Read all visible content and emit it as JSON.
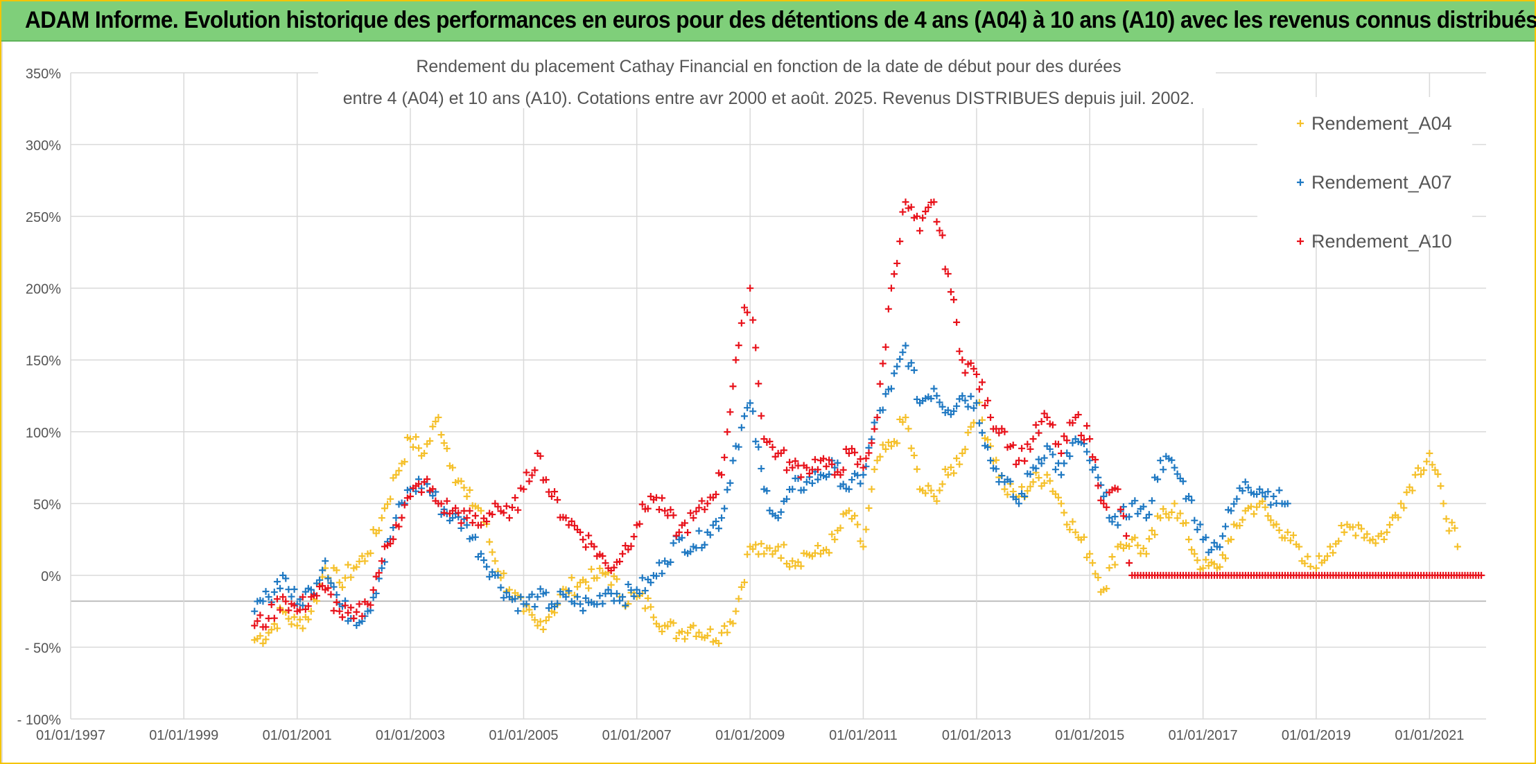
{
  "header": {
    "banner": "ADAM Informe. Evolution historique des performances en euros pour des détentions de 4 ans (A04) à 10 ans (A10) avec les revenus connus distribués"
  },
  "colors": {
    "banner_bg": "#7fcf7a",
    "frame": "#f5c400",
    "A04": "#f5c02a",
    "A07": "#1e78c2",
    "A10": "#e8121b",
    "grid": "#d9d9d9"
  },
  "chart_data": {
    "type": "scatter",
    "marker": "plus",
    "title_line1": "Rendement du placement Cathay Financial  en fonction de la date de début pour des durées",
    "title_line2": "entre 4 (A04) et 10 ans (A10). Cotations entre avr 2000 et août. 2025. Revenus DISTRIBUES depuis juil. 2002.",
    "xlabel": "",
    "ylabel": "",
    "xlim": [
      "1997-01-01",
      "2022-01-01"
    ],
    "ylim": [
      -100,
      350
    ],
    "y_ticks": [
      "350%",
      "300%",
      "250%",
      "200%",
      "150%",
      "100%",
      "50%",
      "0%",
      "- 50%",
      "- 100%"
    ],
    "x_ticks": [
      "01/01/1997",
      "01/01/1999",
      "01/01/2001",
      "01/01/2003",
      "01/01/2005",
      "01/01/2007",
      "01/01/2009",
      "01/01/2011",
      "01/01/2013",
      "01/01/2015",
      "01/01/2017",
      "01/01/2019",
      "01/01/2021"
    ],
    "grid": true,
    "legend_position": "top-right",
    "series": [
      {
        "name": "Rendement_A04",
        "color": "#f5c02a",
        "points": [
          [
            "2000-04-01",
            -45
          ],
          [
            "2000-07-01",
            -40
          ],
          [
            "2000-10-01",
            -25
          ],
          [
            "2001-01-01",
            -35
          ],
          [
            "2001-04-01",
            -25
          ],
          [
            "2001-07-01",
            5
          ],
          [
            "2001-10-01",
            -5
          ],
          [
            "2002-01-01",
            5
          ],
          [
            "2002-04-01",
            15
          ],
          [
            "2002-07-01",
            40
          ],
          [
            "2002-10-01",
            70
          ],
          [
            "2003-01-01",
            95
          ],
          [
            "2003-04-01",
            85
          ],
          [
            "2003-07-01",
            110
          ],
          [
            "2003-10-01",
            75
          ],
          [
            "2004-01-01",
            55
          ],
          [
            "2004-04-01",
            45
          ],
          [
            "2004-07-01",
            10
          ],
          [
            "2004-10-01",
            -10
          ],
          [
            "2005-01-01",
            -25
          ],
          [
            "2005-04-01",
            -35
          ],
          [
            "2005-07-01",
            -25
          ],
          [
            "2005-10-01",
            -10
          ],
          [
            "2006-01-01",
            -5
          ],
          [
            "2006-04-01",
            -2
          ],
          [
            "2006-07-01",
            2
          ],
          [
            "2006-10-01",
            -15
          ],
          [
            "2007-01-01",
            -15
          ],
          [
            "2007-04-01",
            -22
          ],
          [
            "2007-07-01",
            -35
          ],
          [
            "2007-10-01",
            -40
          ],
          [
            "2008-01-01",
            -35
          ],
          [
            "2008-04-01",
            -42
          ],
          [
            "2008-07-01",
            -40
          ],
          [
            "2008-10-01",
            -25
          ],
          [
            "2009-01-01",
            20
          ],
          [
            "2009-04-01",
            15
          ],
          [
            "2009-07-01",
            20
          ],
          [
            "2009-10-01",
            10
          ],
          [
            "2010-01-01",
            15
          ],
          [
            "2010-04-01",
            15
          ],
          [
            "2010-07-01",
            25
          ],
          [
            "2010-10-01",
            45
          ],
          [
            "2011-01-01",
            20
          ],
          [
            "2011-04-01",
            80
          ],
          [
            "2011-07-01",
            90
          ],
          [
            "2011-10-01",
            110
          ],
          [
            "2012-01-01",
            60
          ],
          [
            "2012-04-01",
            55
          ],
          [
            "2012-07-01",
            70
          ],
          [
            "2012-10-01",
            85
          ],
          [
            "2013-01-01",
            120
          ],
          [
            "2013-04-01",
            90
          ],
          [
            "2013-07-01",
            60
          ],
          [
            "2013-10-01",
            55
          ],
          [
            "2014-01-01",
            65
          ],
          [
            "2014-04-01",
            70
          ],
          [
            "2014-07-01",
            50
          ],
          [
            "2014-10-01",
            30
          ],
          [
            "2015-01-01",
            15
          ],
          [
            "2015-04-01",
            -10
          ],
          [
            "2015-07-01",
            20
          ],
          [
            "2015-10-01",
            25
          ],
          [
            "2016-01-01",
            15
          ],
          [
            "2016-04-01",
            40
          ],
          [
            "2016-07-01",
            50
          ],
          [
            "2016-10-01",
            25
          ],
          [
            "2017-01-01",
            5
          ],
          [
            "2017-04-01",
            5
          ],
          [
            "2017-07-01",
            25
          ],
          [
            "2017-10-01",
            45
          ],
          [
            "2018-01-01",
            50
          ],
          [
            "2018-04-01",
            35
          ],
          [
            "2018-07-01",
            30
          ],
          [
            "2018-10-01",
            10
          ],
          [
            "2019-01-01",
            5
          ],
          [
            "2019-04-01",
            20
          ],
          [
            "2019-07-01",
            30
          ],
          [
            "2019-10-01",
            35
          ],
          [
            "2020-01-01",
            25
          ],
          [
            "2020-04-01",
            30
          ],
          [
            "2020-07-01",
            50
          ],
          [
            "2020-10-01",
            70
          ],
          [
            "2021-01-01",
            85
          ],
          [
            "2021-04-01",
            50
          ],
          [
            "2021-07-01",
            20
          ]
        ]
      },
      {
        "name": "Rendement_A07",
        "color": "#1e78c2",
        "points": [
          [
            "2000-04-01",
            -25
          ],
          [
            "2000-07-01",
            -15
          ],
          [
            "2000-10-01",
            0
          ],
          [
            "2001-01-01",
            -20
          ],
          [
            "2001-04-01",
            -10
          ],
          [
            "2001-07-01",
            10
          ],
          [
            "2001-10-01",
            -20
          ],
          [
            "2002-01-01",
            -30
          ],
          [
            "2002-04-01",
            -25
          ],
          [
            "2002-07-01",
            5
          ],
          [
            "2002-10-01",
            40
          ],
          [
            "2003-01-01",
            60
          ],
          [
            "2003-04-01",
            65
          ],
          [
            "2003-07-01",
            50
          ],
          [
            "2003-10-01",
            40
          ],
          [
            "2004-01-01",
            35
          ],
          [
            "2004-04-01",
            15
          ],
          [
            "2004-07-01",
            0
          ],
          [
            "2004-10-01",
            -15
          ],
          [
            "2005-01-01",
            -20
          ],
          [
            "2005-04-01",
            -15
          ],
          [
            "2005-07-01",
            -20
          ],
          [
            "2005-10-01",
            -15
          ],
          [
            "2006-01-01",
            -20
          ],
          [
            "2006-04-01",
            -20
          ],
          [
            "2006-07-01",
            -10
          ],
          [
            "2006-10-01",
            -15
          ],
          [
            "2007-01-01",
            -10
          ],
          [
            "2007-04-01",
            -5
          ],
          [
            "2007-07-01",
            10
          ],
          [
            "2007-10-01",
            25
          ],
          [
            "2008-01-01",
            20
          ],
          [
            "2008-04-01",
            30
          ],
          [
            "2008-07-01",
            40
          ],
          [
            "2008-10-01",
            90
          ],
          [
            "2009-01-01",
            120
          ],
          [
            "2009-04-01",
            60
          ],
          [
            "2009-07-01",
            40
          ],
          [
            "2009-10-01",
            60
          ],
          [
            "2010-01-01",
            65
          ],
          [
            "2010-04-01",
            70
          ],
          [
            "2010-07-01",
            75
          ],
          [
            "2010-10-01",
            60
          ],
          [
            "2011-01-01",
            70
          ],
          [
            "2011-04-01",
            110
          ],
          [
            "2011-07-01",
            130
          ],
          [
            "2011-10-01",
            160
          ],
          [
            "2012-01-01",
            120
          ],
          [
            "2012-04-01",
            130
          ],
          [
            "2012-07-01",
            115
          ],
          [
            "2012-10-01",
            125
          ],
          [
            "2013-01-01",
            120
          ],
          [
            "2013-04-01",
            80
          ],
          [
            "2013-07-01",
            65
          ],
          [
            "2013-10-01",
            50
          ],
          [
            "2014-01-01",
            75
          ],
          [
            "2014-04-01",
            90
          ],
          [
            "2014-07-01",
            70
          ],
          [
            "2014-10-01",
            95
          ],
          [
            "2015-01-01",
            80
          ],
          [
            "2015-04-01",
            55
          ],
          [
            "2015-07-01",
            35
          ],
          [
            "2015-10-01",
            50
          ],
          [
            "2016-01-01",
            40
          ],
          [
            "2016-04-01",
            80
          ],
          [
            "2016-07-01",
            75
          ],
          [
            "2016-10-01",
            55
          ],
          [
            "2017-01-01",
            25
          ],
          [
            "2017-04-01",
            20
          ],
          [
            "2017-07-01",
            45
          ],
          [
            "2017-10-01",
            65
          ],
          [
            "2018-01-01",
            60
          ],
          [
            "2018-04-01",
            55
          ],
          [
            "2018-07-01",
            50
          ]
        ]
      },
      {
        "name": "Rendement_A10",
        "color": "#e8121b",
        "points": [
          [
            "2000-04-01",
            -35
          ],
          [
            "2000-07-01",
            -30
          ],
          [
            "2000-10-01",
            -15
          ],
          [
            "2001-01-01",
            -25
          ],
          [
            "2001-04-01",
            -15
          ],
          [
            "2001-07-01",
            -10
          ],
          [
            "2001-10-01",
            -25
          ],
          [
            "2002-01-01",
            -30
          ],
          [
            "2002-04-01",
            -20
          ],
          [
            "2002-07-01",
            10
          ],
          [
            "2002-10-01",
            35
          ],
          [
            "2003-01-01",
            55
          ],
          [
            "2003-04-01",
            65
          ],
          [
            "2003-07-01",
            50
          ],
          [
            "2003-10-01",
            45
          ],
          [
            "2004-01-01",
            40
          ],
          [
            "2004-04-01",
            35
          ],
          [
            "2004-07-01",
            50
          ],
          [
            "2004-10-01",
            40
          ],
          [
            "2005-01-01",
            60
          ],
          [
            "2005-04-01",
            85
          ],
          [
            "2005-07-01",
            55
          ],
          [
            "2005-10-01",
            40
          ],
          [
            "2006-01-01",
            30
          ],
          [
            "2006-04-01",
            20
          ],
          [
            "2006-07-01",
            5
          ],
          [
            "2006-10-01",
            15
          ],
          [
            "2007-01-01",
            35
          ],
          [
            "2007-04-01",
            55
          ],
          [
            "2007-07-01",
            45
          ],
          [
            "2007-10-01",
            30
          ],
          [
            "2008-01-01",
            40
          ],
          [
            "2008-04-01",
            50
          ],
          [
            "2008-07-01",
            70
          ],
          [
            "2008-10-01",
            150
          ],
          [
            "2009-01-01",
            200
          ],
          [
            "2009-04-01",
            95
          ],
          [
            "2009-07-01",
            85
          ],
          [
            "2009-10-01",
            75
          ],
          [
            "2010-01-01",
            75
          ],
          [
            "2010-04-01",
            80
          ],
          [
            "2010-07-01",
            70
          ],
          [
            "2010-10-01",
            85
          ],
          [
            "2011-01-01",
            75
          ],
          [
            "2011-04-01",
            110
          ],
          [
            "2011-07-01",
            200
          ],
          [
            "2011-10-01",
            260
          ],
          [
            "2012-01-01",
            240
          ],
          [
            "2012-04-01",
            260
          ],
          [
            "2012-07-01",
            210
          ],
          [
            "2012-10-01",
            150
          ],
          [
            "2013-01-01",
            140
          ],
          [
            "2013-04-01",
            110
          ],
          [
            "2013-07-01",
            100
          ],
          [
            "2013-10-01",
            80
          ],
          [
            "2014-01-01",
            95
          ],
          [
            "2014-04-01",
            110
          ],
          [
            "2014-07-01",
            85
          ],
          [
            "2014-10-01",
            110
          ],
          [
            "2015-01-01",
            95
          ],
          [
            "2015-04-01",
            50
          ],
          [
            "2015-07-01",
            60
          ],
          [
            "2015-10-01",
            0
          ],
          [
            "2016-01-01",
            0
          ],
          [
            "2017-01-01",
            0
          ],
          [
            "2018-01-01",
            0
          ],
          [
            "2019-01-01",
            0
          ],
          [
            "2020-01-01",
            0
          ],
          [
            "2021-01-01",
            0
          ],
          [
            "2021-12-01",
            0
          ]
        ]
      }
    ]
  }
}
